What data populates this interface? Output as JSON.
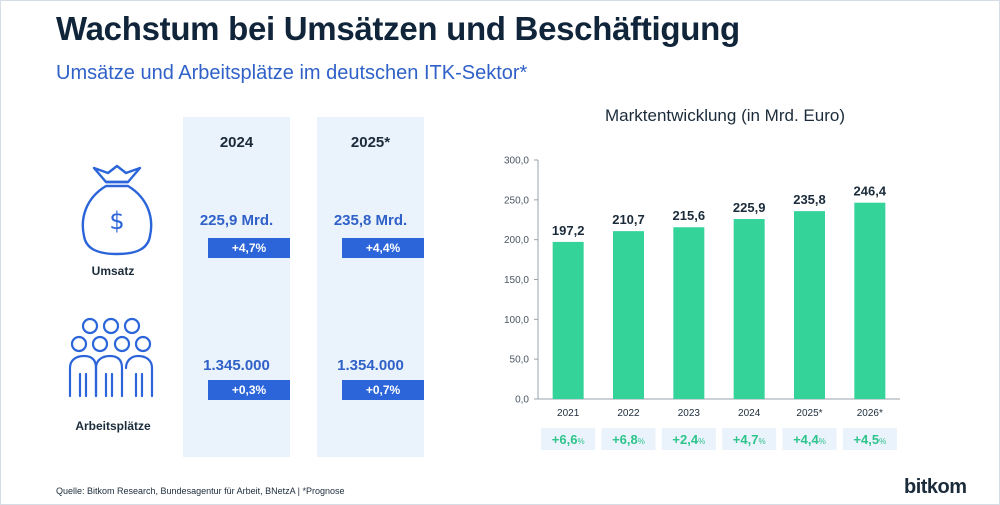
{
  "title": "Wachstum bei Umsätzen und Beschäftigung",
  "subtitle": "Umsätze und Arbeitsplätze im deutschen ITK-Sektor*",
  "table": {
    "years": [
      "2024",
      "2025*"
    ],
    "rows": [
      {
        "label": "Umsatz",
        "icon": "money-bag-icon",
        "values": [
          "225,9 Mrd.",
          "235,8 Mrd."
        ],
        "changes": [
          "+4,7%",
          "+4,4%"
        ]
      },
      {
        "label": "Arbeitsplätze",
        "icon": "people-group-icon",
        "values": [
          "1.345.000",
          "1.354.000"
        ],
        "changes": [
          "+0,3%",
          "+0,7%"
        ]
      }
    ]
  },
  "chart_data": {
    "type": "bar",
    "title": "Marktentwicklung (in Mrd. Euro)",
    "categories": [
      "2021",
      "2022",
      "2023",
      "2024",
      "2025*",
      "2026*"
    ],
    "values": [
      197.2,
      210.7,
      215.6,
      225.9,
      235.8,
      246.4
    ],
    "value_labels": [
      "197,2",
      "210,7",
      "215,6",
      "225,9",
      "235,8",
      "246,4"
    ],
    "growth": [
      "+6,6",
      "+6,8",
      "+2,4",
      "+4,7",
      "+4,4",
      "+4,5"
    ],
    "growth_unit": "%",
    "ylim": [
      0,
      300
    ],
    "yticks": [
      0,
      50,
      100,
      150,
      200,
      250,
      300
    ],
    "ytick_labels": [
      "0,0",
      "50,0",
      "100,0",
      "150,0",
      "200,0",
      "250,0",
      "300,0"
    ],
    "grid": false,
    "xlabel": "",
    "ylabel": ""
  },
  "footer": "Quelle: Bitkom Research, Bundesagentur für Arbeit, BNetzA | *Prognose",
  "logo": "bitkom",
  "colors": {
    "bar": "#34d39a",
    "accent": "#2b65d9",
    "title": "#10243a",
    "subtitle": "#2f61c8",
    "growth": "#2ec48b",
    "panel": "#eaf2fb"
  }
}
